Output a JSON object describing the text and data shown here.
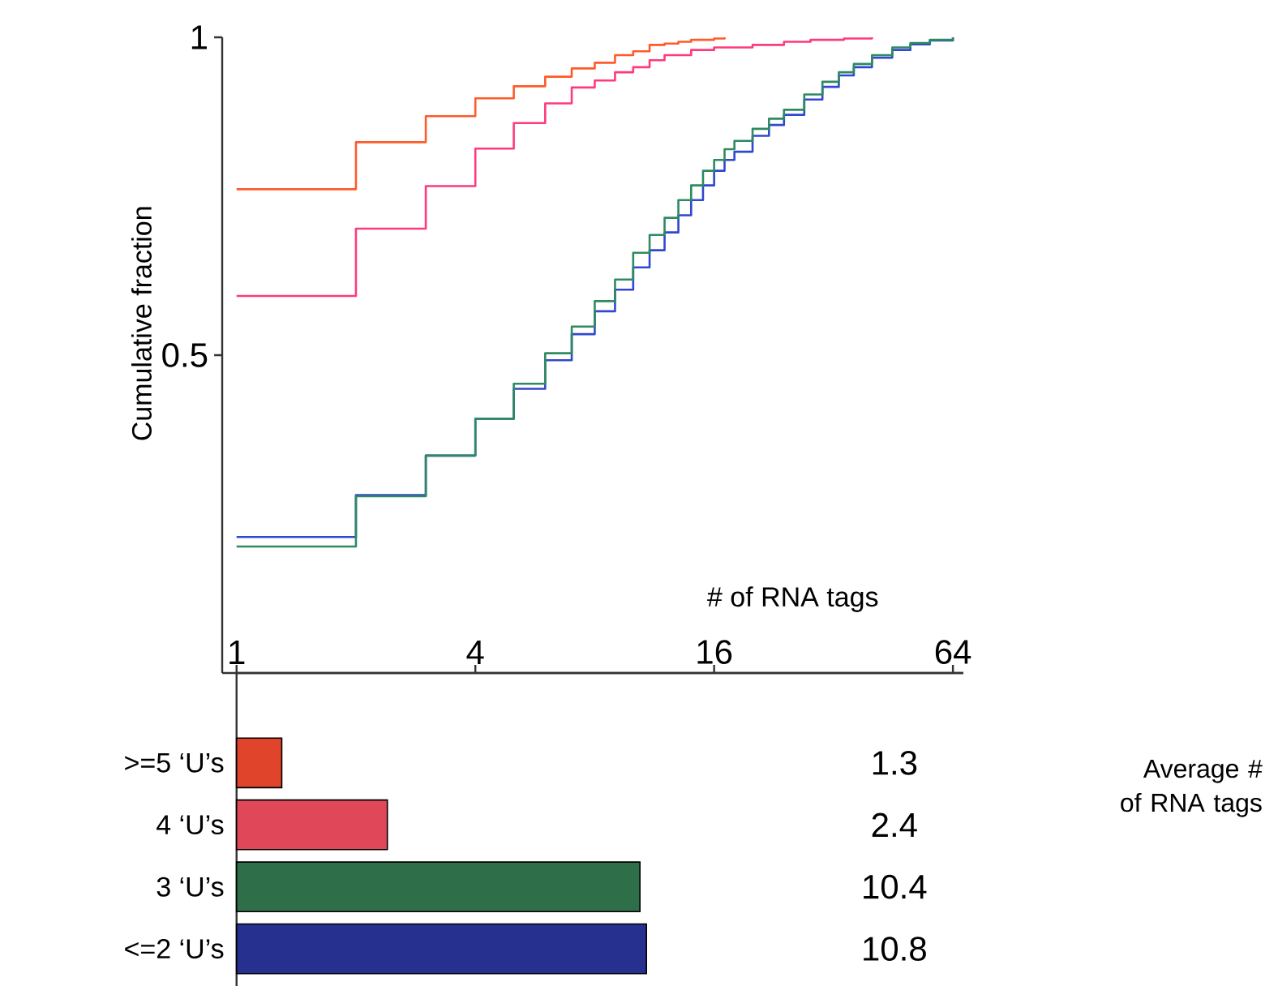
{
  "chart_data": [
    {
      "type": "step",
      "ylabel": "Cumulative fraction",
      "xlabel": "# of RNA tags",
      "log": "x",
      "xlim": [
        0.92,
        68
      ],
      "xticks": [
        1,
        4,
        16,
        64
      ],
      "ylim": [
        0,
        1
      ],
      "yticks": [
        0.5,
        1
      ],
      "grid": false,
      "marker": "none",
      "line_style": "solid",
      "series": [
        {
          "color": "#ff5a2a",
          "x": [
            1,
            2,
            3,
            4,
            5,
            6,
            7,
            8,
            9,
            10,
            11,
            12,
            13,
            14,
            16,
            17
          ],
          "values": [
            0.761,
            0.835,
            0.876,
            0.904,
            0.923,
            0.938,
            0.951,
            0.96,
            0.972,
            0.978,
            0.988,
            0.99,
            0.993,
            0.996,
            0.998,
            1.0
          ]
        },
        {
          "color": "#ff3a7a",
          "x": [
            1,
            2,
            3,
            4,
            5,
            6,
            7,
            8,
            9,
            10,
            11,
            12,
            14,
            16,
            20,
            24,
            28,
            34,
            40
          ],
          "values": [
            0.593,
            0.699,
            0.766,
            0.825,
            0.865,
            0.896,
            0.921,
            0.932,
            0.945,
            0.953,
            0.964,
            0.972,
            0.98,
            0.984,
            0.988,
            0.993,
            0.996,
            0.998,
            1.0
          ]
        },
        {
          "color": "#3048d0",
          "x": [
            1,
            2,
            3,
            4,
            5,
            6,
            7,
            8,
            9,
            10,
            11,
            12,
            13,
            14,
            15,
            16,
            17,
            18,
            20,
            22,
            24,
            27,
            30,
            33,
            36,
            40,
            45,
            50,
            56,
            64
          ],
          "values": [
            0.214,
            0.28,
            0.342,
            0.4,
            0.447,
            0.492,
            0.533,
            0.569,
            0.603,
            0.638,
            0.665,
            0.693,
            0.72,
            0.744,
            0.767,
            0.79,
            0.807,
            0.82,
            0.845,
            0.862,
            0.878,
            0.902,
            0.922,
            0.94,
            0.953,
            0.968,
            0.98,
            0.989,
            0.995,
            1.0
          ]
        },
        {
          "color": "#2e8a60",
          "x": [
            1,
            2,
            3,
            4,
            5,
            6,
            7,
            8,
            9,
            10,
            11,
            12,
            13,
            14,
            15,
            16,
            17,
            18,
            20,
            22,
            24,
            27,
            30,
            33,
            36,
            40,
            45,
            50,
            56,
            64
          ],
          "values": [
            0.199,
            0.278,
            0.342,
            0.4,
            0.455,
            0.503,
            0.545,
            0.585,
            0.619,
            0.661,
            0.689,
            0.716,
            0.744,
            0.767,
            0.79,
            0.807,
            0.824,
            0.837,
            0.856,
            0.872,
            0.886,
            0.91,
            0.93,
            0.945,
            0.958,
            0.972,
            0.984,
            0.991,
            0.996,
            1.0
          ]
        }
      ]
    },
    {
      "type": "bar",
      "orientation": "horizontal",
      "log": "x",
      "xlim": [
        1,
        68
      ],
      "xticks": [
        1,
        4,
        16,
        64
      ],
      "tick_labels": "y",
      "data_labels": true,
      "categories": [
        ">=5 ‘U’s",
        "4 ‘U’s",
        "3 ‘U’s",
        "<=2 ‘U’s"
      ],
      "values": [
        1.3,
        2.4,
        10.4,
        10.8
      ],
      "colors": [
        "#e0452b",
        "#e0485a",
        "#2e6e48",
        "#26308f"
      ],
      "annotations": [
        "Average # of RNA tags"
      ]
    }
  ]
}
